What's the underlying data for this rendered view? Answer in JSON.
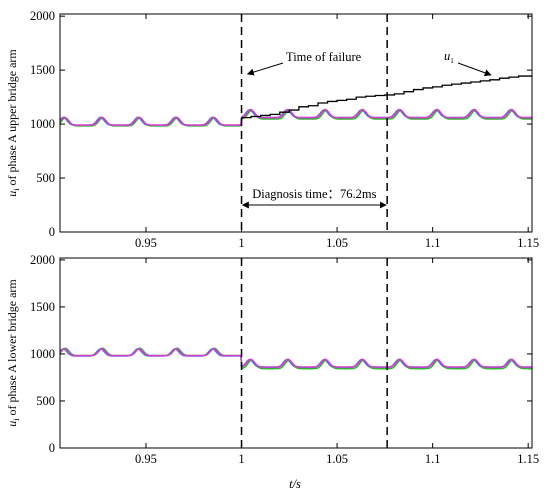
{
  "figure": {
    "xlabel": "t/s",
    "colors": {
      "axes": "#000000",
      "green": "#33b233",
      "blue": "#4a6ee8",
      "magenta": "#d040d0",
      "black": "#000000"
    }
  },
  "chart_data": [
    {
      "type": "line",
      "ylabel_main": "u",
      "ylabel_sub": "i",
      "ylabel_rest": " of phase A upper bridge arm",
      "xlim": [
        0.905,
        1.152
      ],
      "ylim": [
        0,
        2020
      ],
      "xticks": [
        "0.95",
        "1",
        "1.05",
        "1.1",
        "1.15"
      ],
      "xtick_values": [
        0.95,
        1.0,
        1.05,
        1.1,
        1.15
      ],
      "yticks": [
        "0",
        "500",
        "1000",
        "1500",
        "2000"
      ],
      "ytick_values": [
        0,
        500,
        1000,
        1500,
        2000
      ],
      "fault_time": 1.0,
      "diagnosis_end": 1.0762,
      "annotations": {
        "failure_label": "Time of failure",
        "diagnosis_label": "Diagnosis time：76.2ms",
        "u1_main": "u",
        "u1_sub": "1"
      },
      "series": [
        {
          "color": "blue",
          "base": 1010,
          "amp": 60,
          "period": 0.0195,
          "phase": 0.0,
          "fault_base": 1080,
          "fault_amp": 60
        },
        {
          "color": "green",
          "base": 1005,
          "amp": 62,
          "period": 0.0195,
          "phase": 0.001,
          "fault_base": 1070,
          "fault_amp": 65
        },
        {
          "color": "magenta",
          "base": 1012,
          "amp": 60,
          "period": 0.0195,
          "phase": 0.0005,
          "fault_base": 1082,
          "fault_amp": 62
        }
      ],
      "u1_series": {
        "color": "black",
        "x": [
          1.0,
          1.005,
          1.01,
          1.015,
          1.02,
          1.025,
          1.03,
          1.035,
          1.04,
          1.045,
          1.05,
          1.055,
          1.06,
          1.065,
          1.07,
          1.075,
          1.08,
          1.085,
          1.09,
          1.095,
          1.1,
          1.105,
          1.11,
          1.115,
          1.12,
          1.125,
          1.13,
          1.135,
          1.14,
          1.145,
          1.152
        ],
        "y": [
          1060,
          1070,
          1080,
          1090,
          1110,
          1130,
          1160,
          1170,
          1195,
          1210,
          1220,
          1230,
          1250,
          1258,
          1265,
          1270,
          1280,
          1300,
          1320,
          1335,
          1345,
          1360,
          1370,
          1380,
          1390,
          1400,
          1410,
          1425,
          1435,
          1445,
          1450
        ]
      }
    },
    {
      "type": "line",
      "ylabel_main": "u",
      "ylabel_sub": "i",
      "ylabel_rest": " of phase A lower bridge arm",
      "xlim": [
        0.905,
        1.152
      ],
      "ylim": [
        0,
        2020
      ],
      "xticks": [
        "0.95",
        "1",
        "1.05",
        "1.1",
        "1.15"
      ],
      "xtick_values": [
        0.95,
        1.0,
        1.05,
        1.1,
        1.15
      ],
      "yticks": [
        "0",
        "500",
        "1000",
        "1500",
        "2000"
      ],
      "ytick_values": [
        0,
        500,
        1000,
        1500,
        2000
      ],
      "fault_time": 1.0,
      "diagnosis_end": 1.0762,
      "series": [
        {
          "color": "blue",
          "base": 1000,
          "amp": 62,
          "period": 0.0195,
          "phase": 0.0,
          "fault_base": 880,
          "fault_amp": 70
        },
        {
          "color": "green",
          "base": 1005,
          "amp": 65,
          "period": 0.0195,
          "phase": 0.001,
          "fault_base": 870,
          "fault_amp": 75
        },
        {
          "color": "magenta",
          "base": 1002,
          "amp": 60,
          "period": 0.0195,
          "phase": 0.0005,
          "fault_base": 885,
          "fault_amp": 68
        }
      ]
    }
  ]
}
